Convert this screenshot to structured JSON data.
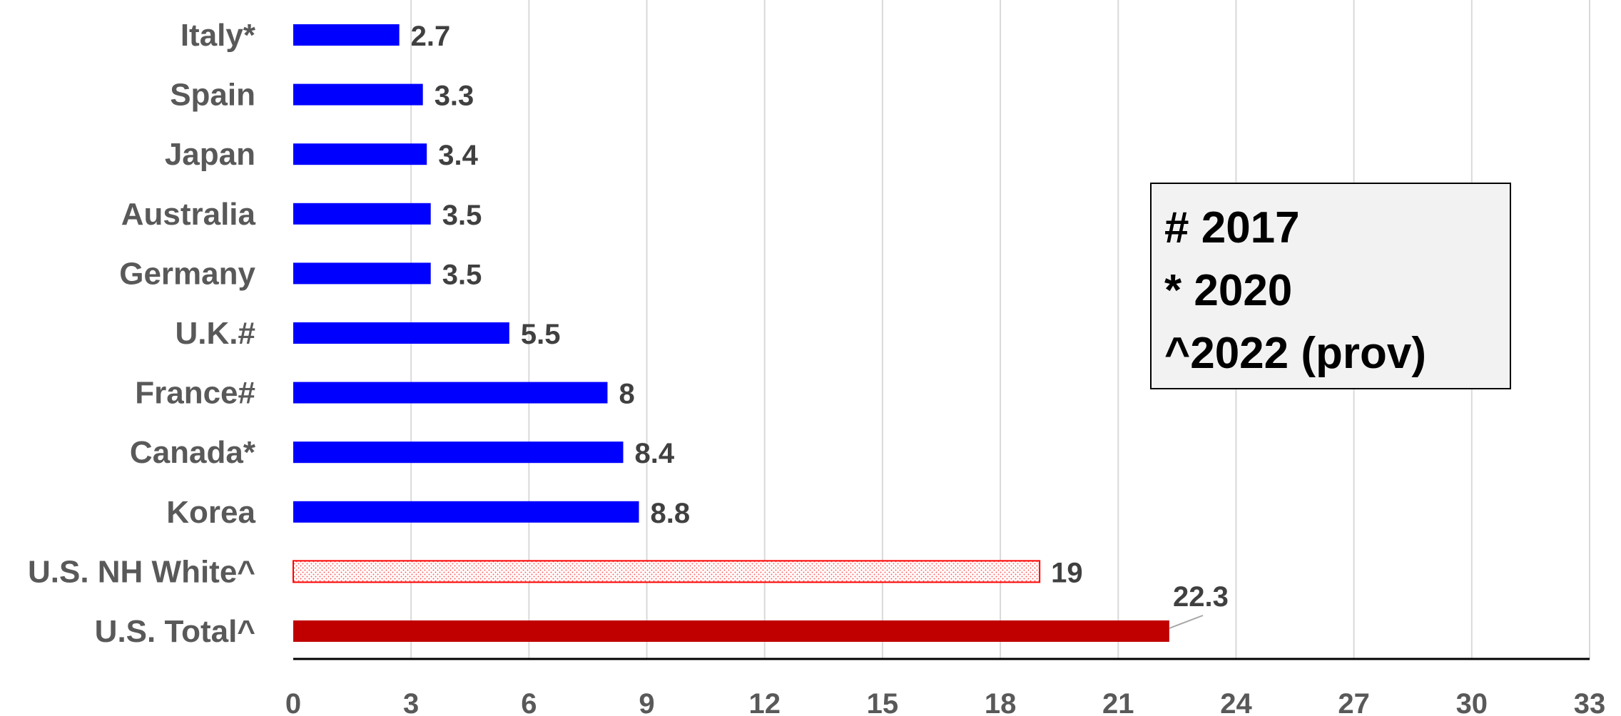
{
  "chart_data": {
    "type": "bar",
    "orientation": "horizontal",
    "categories": [
      "Italy*",
      "Spain",
      "Japan",
      "Australia",
      "Germany",
      "U.K.#",
      "France#",
      "Canada*",
      "Korea",
      "U.S. NH White^",
      "U.S. Total^"
    ],
    "values": [
      2.7,
      3.3,
      3.4,
      3.5,
      3.5,
      5.5,
      8,
      8.4,
      8.8,
      19,
      22.3
    ],
    "value_labels": [
      "2.7",
      "3.3",
      "3.4",
      "3.5",
      "3.5",
      "5.5",
      "8",
      "8.4",
      "8.8",
      "19",
      "22.3"
    ],
    "bar_styles": [
      "solid",
      "solid",
      "solid",
      "solid",
      "solid",
      "solid",
      "solid",
      "solid",
      "solid",
      "dotted",
      "solid"
    ],
    "bar_colors": [
      "#0000ff",
      "#0000ff",
      "#0000ff",
      "#0000ff",
      "#0000ff",
      "#0000ff",
      "#0000ff",
      "#0000ff",
      "#0000ff",
      "#ff0000",
      "#c00000"
    ],
    "xlim": [
      0,
      33
    ],
    "xticks": [
      0,
      3,
      6,
      9,
      12,
      15,
      18,
      21,
      24,
      27,
      30,
      33
    ],
    "title": "",
    "xlabel": "",
    "ylabel": "",
    "grid": "vertical",
    "legend": "none"
  },
  "notes": [
    "# 2017",
    "* 2020",
    "^2022 (prov)"
  ]
}
